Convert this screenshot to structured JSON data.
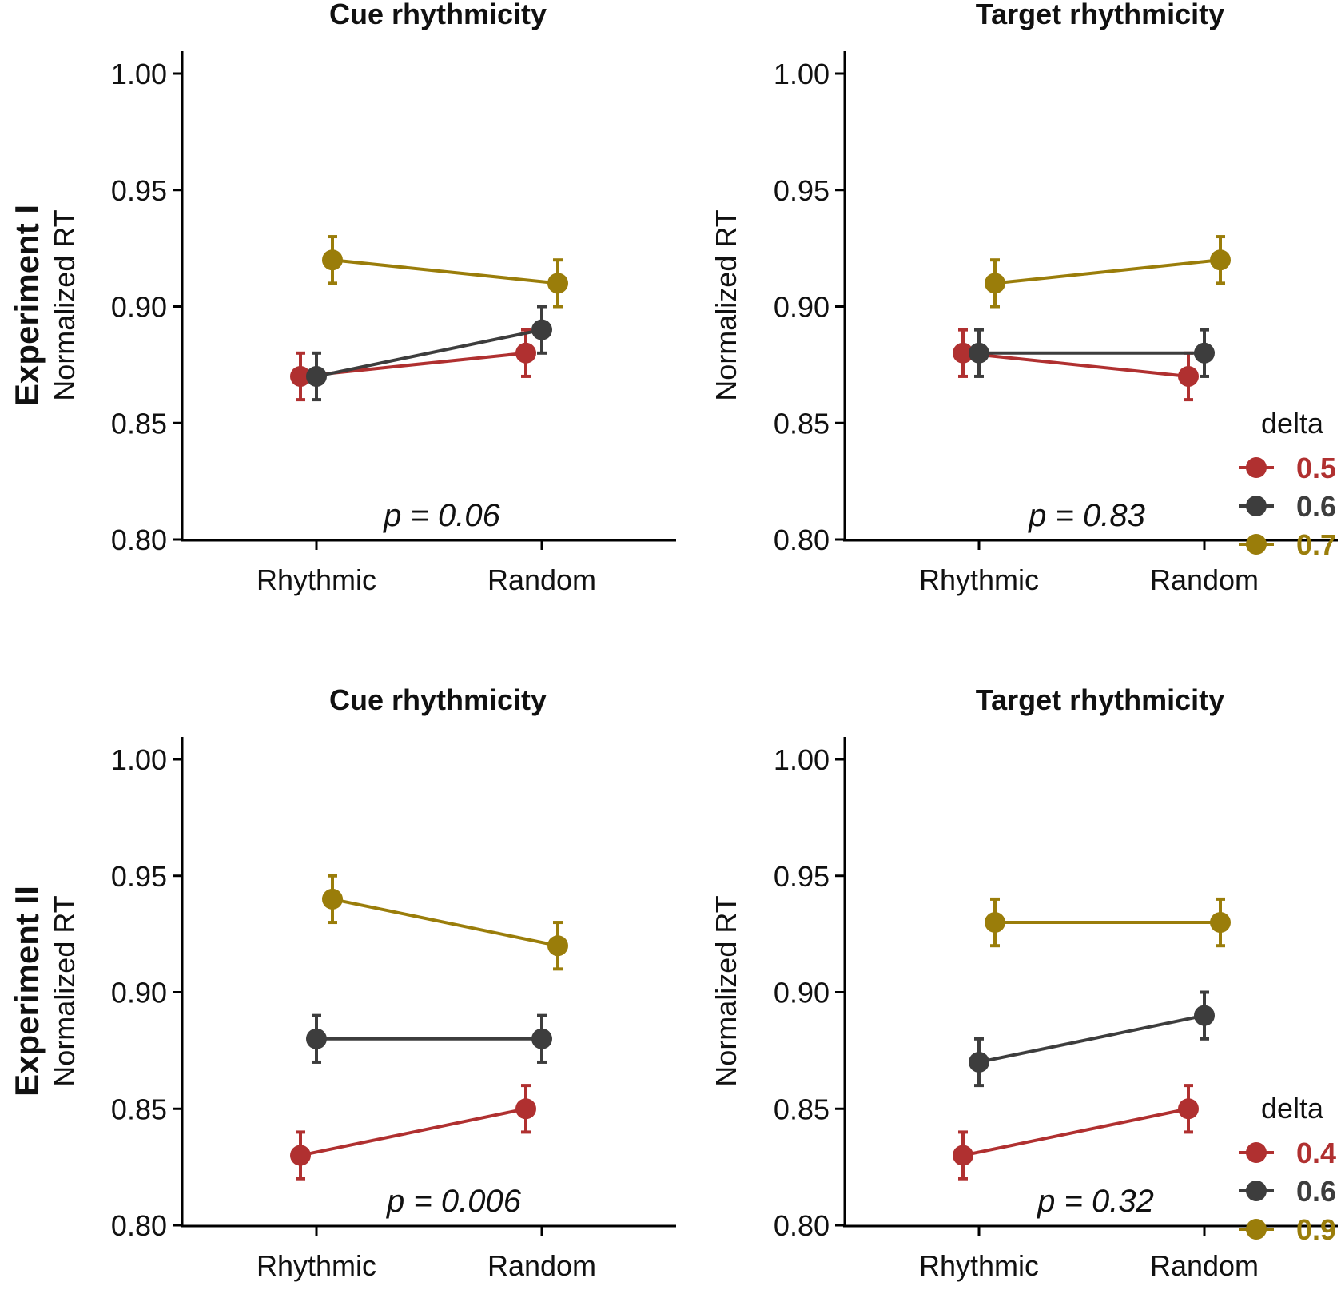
{
  "chart_data": [
    {
      "type": "line",
      "row_label": "Experiment I",
      "title": "Cue rhythmicity",
      "xlabel": "",
      "ylabel": "Normalized RT",
      "categories": [
        "Rhythmic",
        "Random"
      ],
      "ylim": [
        0.8,
        1.0
      ],
      "yticks": [
        "0.80",
        "0.85",
        "0.90",
        "0.95",
        "1.00"
      ],
      "annotation": "p = 0.06",
      "series": [
        {
          "name": "0.5",
          "color": "#b03030",
          "values": [
            0.87,
            0.88
          ],
          "err": [
            0.01,
            0.01
          ]
        },
        {
          "name": "0.6",
          "color": "#3d3d3d",
          "values": [
            0.87,
            0.89
          ],
          "err": [
            0.01,
            0.01
          ]
        },
        {
          "name": "0.7",
          "color": "#9a7d0a",
          "values": [
            0.92,
            0.91
          ],
          "err": [
            0.01,
            0.01
          ]
        }
      ],
      "legend": null
    },
    {
      "type": "line",
      "row_label": "",
      "title": "Target rhythmicity",
      "xlabel": "",
      "ylabel": "Normalized RT",
      "categories": [
        "Rhythmic",
        "Random"
      ],
      "ylim": [
        0.8,
        1.0
      ],
      "yticks": [
        "0.80",
        "0.85",
        "0.90",
        "0.95",
        "1.00"
      ],
      "annotation": "p = 0.83",
      "series": [
        {
          "name": "0.5",
          "color": "#b03030",
          "values": [
            0.88,
            0.87
          ],
          "err": [
            0.01,
            0.01
          ]
        },
        {
          "name": "0.6",
          "color": "#3d3d3d",
          "values": [
            0.88,
            0.88
          ],
          "err": [
            0.01,
            0.01
          ]
        },
        {
          "name": "0.7",
          "color": "#9a7d0a",
          "values": [
            0.91,
            0.92
          ],
          "err": [
            0.01,
            0.01
          ]
        }
      ],
      "legend": {
        "title": "delta",
        "labels": [
          "0.5",
          "0.6",
          "0.7"
        ],
        "placement": "right"
      }
    },
    {
      "type": "line",
      "row_label": "Experiment II",
      "title": "Cue rhythmicity",
      "xlabel": "",
      "ylabel": "Normalized RT",
      "categories": [
        "Rhythmic",
        "Random"
      ],
      "ylim": [
        0.8,
        1.0
      ],
      "yticks": [
        "0.80",
        "0.85",
        "0.90",
        "0.95",
        "1.00"
      ],
      "annotation": "p = 0.006",
      "series": [
        {
          "name": "0.4",
          "color": "#b03030",
          "values": [
            0.83,
            0.85
          ],
          "err": [
            0.01,
            0.01
          ]
        },
        {
          "name": "0.6",
          "color": "#3d3d3d",
          "values": [
            0.88,
            0.88
          ],
          "err": [
            0.01,
            0.01
          ]
        },
        {
          "name": "0.9",
          "color": "#9a7d0a",
          "values": [
            0.94,
            0.92
          ],
          "err": [
            0.01,
            0.01
          ]
        }
      ],
      "legend": null
    },
    {
      "type": "line",
      "row_label": "",
      "title": "Target rhythmicity",
      "xlabel": "",
      "ylabel": "Normalized RT",
      "categories": [
        "Rhythmic",
        "Random"
      ],
      "ylim": [
        0.8,
        1.0
      ],
      "yticks": [
        "0.80",
        "0.85",
        "0.90",
        "0.95",
        "1.00"
      ],
      "annotation": "p = 0.32",
      "series": [
        {
          "name": "0.4",
          "color": "#b03030",
          "values": [
            0.83,
            0.85
          ],
          "err": [
            0.01,
            0.01
          ]
        },
        {
          "name": "0.6",
          "color": "#3d3d3d",
          "values": [
            0.87,
            0.89
          ],
          "err": [
            0.01,
            0.01
          ]
        },
        {
          "name": "0.9",
          "color": "#9a7d0a",
          "values": [
            0.93,
            0.93
          ],
          "err": [
            0.01,
            0.01
          ]
        }
      ],
      "legend": {
        "title": "delta",
        "labels": [
          "0.4",
          "0.6",
          "0.9"
        ],
        "placement": "right"
      }
    }
  ]
}
